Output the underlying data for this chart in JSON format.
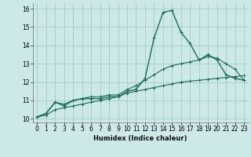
{
  "title": "",
  "xlabel": "Humidex (Indice chaleur)",
  "ylabel": "",
  "background_color": "#cce8e8",
  "grid_color": "#aacfcf",
  "line_color": "#1a6b5a",
  "xlim": [
    -0.5,
    23.5
  ],
  "ylim": [
    9.8,
    16.3
  ],
  "xticks": [
    0,
    1,
    2,
    3,
    4,
    5,
    6,
    7,
    8,
    9,
    10,
    11,
    12,
    13,
    14,
    15,
    16,
    17,
    18,
    19,
    20,
    21,
    22,
    23
  ],
  "yticks": [
    10,
    11,
    12,
    13,
    14,
    15,
    16
  ],
  "x": [
    0,
    1,
    2,
    3,
    4,
    5,
    6,
    7,
    8,
    9,
    10,
    11,
    12,
    13,
    14,
    15,
    16,
    17,
    18,
    19,
    20,
    21,
    22,
    23
  ],
  "y_main": [
    10.1,
    10.3,
    10.9,
    10.7,
    11.0,
    11.1,
    11.1,
    11.1,
    11.2,
    11.2,
    11.5,
    11.6,
    12.2,
    14.4,
    15.8,
    15.9,
    14.7,
    14.1,
    13.2,
    13.5,
    13.2,
    12.4,
    12.2,
    12.1
  ],
  "y_line1": [
    10.1,
    10.3,
    10.9,
    10.8,
    11.0,
    11.1,
    11.2,
    11.2,
    11.3,
    11.3,
    11.6,
    11.8,
    12.1,
    12.4,
    12.7,
    12.9,
    13.0,
    13.1,
    13.2,
    13.4,
    13.3,
    13.0,
    12.7,
    12.1
  ],
  "y_line2": [
    10.1,
    10.2,
    10.5,
    10.6,
    10.7,
    10.8,
    10.9,
    11.0,
    11.1,
    11.2,
    11.4,
    11.5,
    11.6,
    11.7,
    11.8,
    11.9,
    12.0,
    12.05,
    12.1,
    12.15,
    12.2,
    12.25,
    12.3,
    12.35
  ],
  "xlabel_fontsize": 6.0,
  "tick_fontsize": 5.5
}
